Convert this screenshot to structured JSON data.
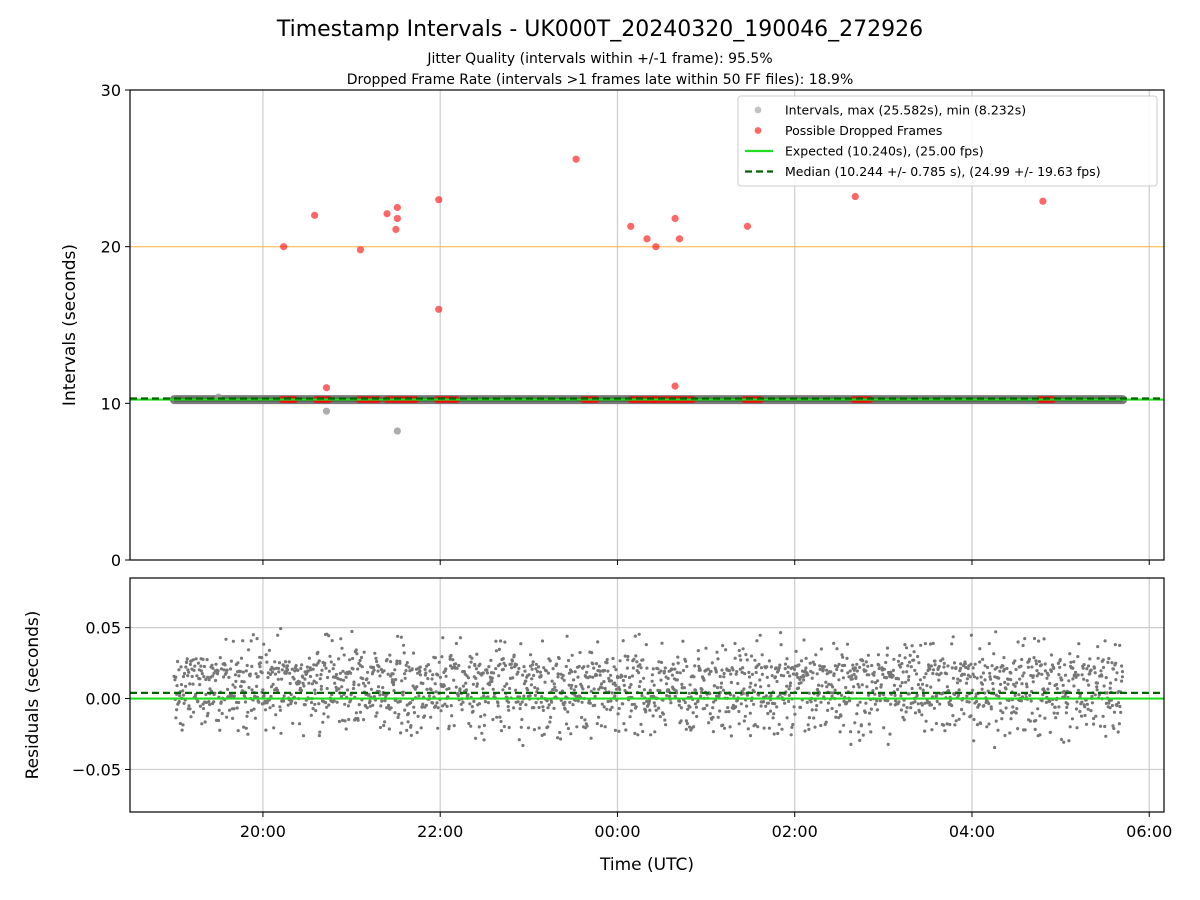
{
  "header": {
    "title": "Timestamp Intervals - UK000T_20240320_190046_272926",
    "subtitle_jitter": "Jitter Quality (intervals within +/-1 frame): 95.5%",
    "subtitle_dropped": "Dropped Frame Rate (intervals >1 frames late within 50 FF files): 18.9%"
  },
  "chart_data": [
    {
      "type": "scatter",
      "ylabel": "Intervals (seconds)",
      "xlabel": "",
      "ylim": [
        0,
        30
      ],
      "y_ticks": [
        0,
        10,
        20,
        30
      ],
      "y_tick_labels": [
        "0",
        "10",
        "20",
        "30"
      ],
      "x_range_hours_utc": [
        "2024-03-20 18:30",
        "2024-03-21 06:10"
      ],
      "grid": "vertical",
      "reference_line_20s": {
        "y": 20,
        "color": "#ffb84d"
      },
      "legend_position": "top-right",
      "series": [
        {
          "name": "Intervals, max (25.582s), min (8.232s)",
          "color": "#999999",
          "kind": "dense_band",
          "x_start": "2024-03-20 19:00",
          "x_end": "2024-03-21 05:42",
          "y": 10.24,
          "outliers": [
            {
              "x": "2024-03-20 19:30",
              "y": 10.4
            },
            {
              "x": "2024-03-20 20:43",
              "y": 9.5
            },
            {
              "x": "2024-03-20 21:31",
              "y": 8.232
            }
          ]
        },
        {
          "name": "Possible Dropped Frames",
          "color": "#ff0000",
          "points": [
            {
              "x": "2024-03-20 20:14",
              "y": 20.0
            },
            {
              "x": "2024-03-20 20:35",
              "y": 22.0
            },
            {
              "x": "2024-03-20 20:43",
              "y": 11.0
            },
            {
              "x": "2024-03-20 21:06",
              "y": 19.8
            },
            {
              "x": "2024-03-20 21:24",
              "y": 22.1
            },
            {
              "x": "2024-03-20 21:30",
              "y": 21.1
            },
            {
              "x": "2024-03-20 21:31",
              "y": 21.8
            },
            {
              "x": "2024-03-20 21:31",
              "y": 22.5
            },
            {
              "x": "2024-03-20 21:59",
              "y": 16.0
            },
            {
              "x": "2024-03-20 21:59",
              "y": 23.0
            },
            {
              "x": "2024-03-20 23:32",
              "y": 25.582
            },
            {
              "x": "2024-03-21 00:09",
              "y": 21.3
            },
            {
              "x": "2024-03-21 00:20",
              "y": 20.5
            },
            {
              "x": "2024-03-21 00:26",
              "y": 20.0
            },
            {
              "x": "2024-03-21 00:39",
              "y": 21.8
            },
            {
              "x": "2024-03-21 00:39",
              "y": 11.1
            },
            {
              "x": "2024-03-21 00:42",
              "y": 20.5
            },
            {
              "x": "2024-03-21 01:28",
              "y": 21.3
            },
            {
              "x": "2024-03-21 02:41",
              "y": 23.2
            },
            {
              "x": "2024-03-21 04:48",
              "y": 22.9
            }
          ],
          "clusters_at_expected": [
            {
              "x_start": "2024-03-20 20:13",
              "x_end": "2024-03-20 20:23"
            },
            {
              "x_start": "2024-03-20 20:36",
              "x_end": "2024-03-20 20:45"
            },
            {
              "x_start": "2024-03-20 21:05",
              "x_end": "2024-03-20 21:19"
            },
            {
              "x_start": "2024-03-20 21:24",
              "x_end": "2024-03-20 21:45"
            },
            {
              "x_start": "2024-03-20 21:58",
              "x_end": "2024-03-20 22:11"
            },
            {
              "x_start": "2024-03-20 23:37",
              "x_end": "2024-03-20 23:47"
            },
            {
              "x_start": "2024-03-21 00:09",
              "x_end": "2024-03-21 00:25"
            },
            {
              "x_start": "2024-03-21 00:25",
              "x_end": "2024-03-21 00:36"
            },
            {
              "x_start": "2024-03-21 00:38",
              "x_end": "2024-03-21 00:51"
            },
            {
              "x_start": "2024-03-21 01:26",
              "x_end": "2024-03-21 01:38"
            },
            {
              "x_start": "2024-03-21 02:40",
              "x_end": "2024-03-21 02:51"
            },
            {
              "x_start": "2024-03-21 04:46",
              "x_end": "2024-03-21 04:55"
            }
          ]
        },
        {
          "name": "Expected (10.240s), (25.00 fps)",
          "color": "#22dd22",
          "kind": "hline",
          "y": 10.24
        },
        {
          "name": "Median (10.244 +/- 0.785 s), (24.99 +/- 19.63 fps)",
          "color": "#006400",
          "kind": "hline_dashed",
          "y": 10.244
        }
      ]
    },
    {
      "type": "scatter",
      "ylabel": "Residuals (seconds)",
      "xlabel": "Time (UTC)",
      "ylim": [
        -0.08,
        0.085
      ],
      "y_ticks": [
        -0.05,
        0,
        0.05
      ],
      "y_tick_labels": [
        "−0.05",
        "0.00",
        "0.05"
      ],
      "x_ticks": [
        "2024-03-20 20:00",
        "2024-03-20 22:00",
        "2024-03-21 00:00",
        "2024-03-21 02:00",
        "2024-03-21 04:00",
        "2024-03-21 06:00"
      ],
      "x_tick_labels": [
        "20:00",
        "22:00",
        "00:00",
        "02:00",
        "04:00",
        "06:00"
      ],
      "grid": "both",
      "series": [
        {
          "kind": "residual_scatter",
          "color": "#777777",
          "x_start": "2024-03-20 19:00",
          "x_end": "2024-03-21 05:42",
          "approx_count": 2300,
          "levels": [
            {
              "y": 0.02,
              "share": 0.42,
              "spread": 0.006
            },
            {
              "y": 0.0,
              "share": 0.44,
              "spread": 0.006
            },
            {
              "y": -0.02,
              "share": 0.1,
              "spread": 0.005
            },
            {
              "y": 0.04,
              "share": 0.04,
              "spread": 0.004
            }
          ]
        },
        {
          "kind": "hline",
          "color": "#22dd22",
          "y": 0.0
        },
        {
          "kind": "hline_dashed",
          "color": "#006400",
          "y": 0.004
        }
      ]
    }
  ]
}
